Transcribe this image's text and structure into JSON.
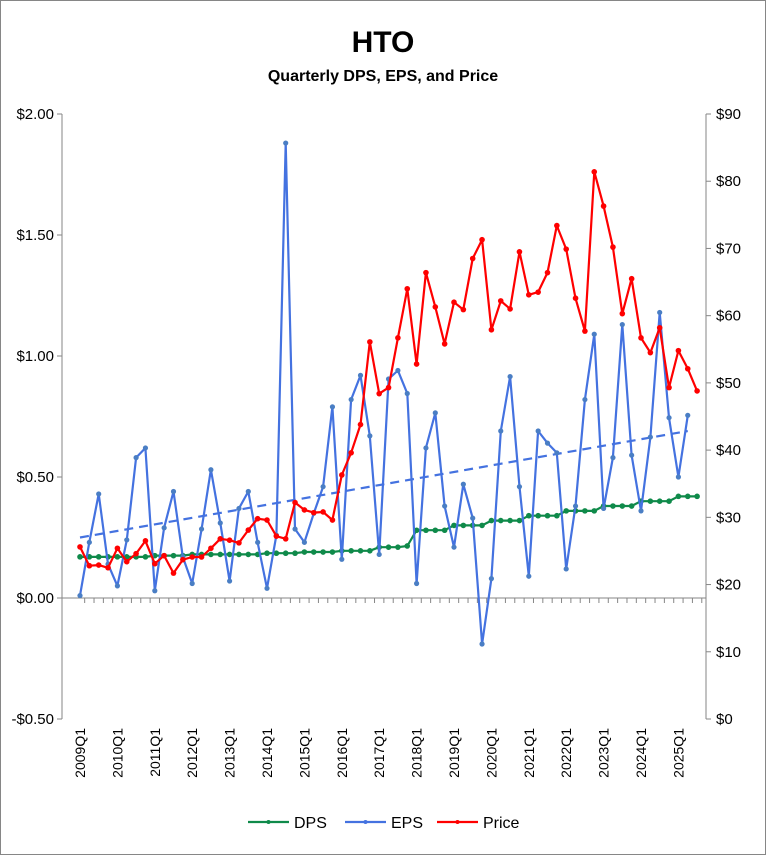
{
  "chart_data": {
    "type": "line",
    "title": "HTO",
    "subtitle": "Quarterly DPS, EPS, and Price",
    "left_axis": {
      "ylim": [
        -0.5,
        2.0
      ],
      "ticks": [
        2.0,
        1.5,
        1.0,
        0.5,
        0.0,
        -0.5
      ],
      "tick_labels": [
        "$2.00",
        "$1.50",
        "$1.00",
        "$0.50",
        "$0.00",
        "-$0.50"
      ]
    },
    "right_axis": {
      "ylim": [
        0,
        90
      ],
      "ticks": [
        90,
        80,
        70,
        60,
        50,
        40,
        30,
        20,
        10,
        0
      ],
      "tick_labels": [
        "$90",
        "$80",
        "$70",
        "$60",
        "$50",
        "$40",
        "$30",
        "$20",
        "$10",
        "$0"
      ]
    },
    "x_tick_labels": [
      "2009Q1",
      "2010Q1",
      "2011Q1",
      "2012Q1",
      "2013Q1",
      "2014Q1",
      "2015Q1",
      "2016Q1",
      "2017Q1",
      "2018Q1",
      "2019Q1",
      "2020Q1",
      "2021Q1",
      "2022Q1",
      "2023Q1",
      "2024Q1",
      "2025Q1"
    ],
    "num_quarters": 67,
    "grid": false,
    "legend_position": "bottom",
    "series": [
      {
        "name": "DPS",
        "axis": "left",
        "color": "#0F8A4A",
        "values": [
          0.17,
          0.17,
          0.17,
          0.17,
          0.17,
          0.17,
          0.17,
          0.17,
          0.175,
          0.175,
          0.175,
          0.175,
          0.18,
          0.18,
          0.18,
          0.18,
          0.18,
          0.18,
          0.18,
          0.18,
          0.185,
          0.185,
          0.185,
          0.185,
          0.19,
          0.19,
          0.19,
          0.19,
          0.195,
          0.195,
          0.195,
          0.195,
          0.21,
          0.21,
          0.21,
          0.215,
          0.28,
          0.28,
          0.28,
          0.28,
          0.3,
          0.3,
          0.3,
          0.3,
          0.32,
          0.32,
          0.32,
          0.32,
          0.34,
          0.34,
          0.34,
          0.34,
          0.36,
          0.36,
          0.36,
          0.36,
          0.38,
          0.38,
          0.38,
          0.38,
          0.4,
          0.4,
          0.4,
          0.4,
          0.42,
          0.42,
          0.42
        ]
      },
      {
        "name": "EPS",
        "axis": "left",
        "color": "#4472E0",
        "values": [
          0.01,
          0.23,
          0.43,
          0.14,
          0.05,
          0.24,
          0.58,
          0.62,
          0.03,
          0.29,
          0.44,
          0.17,
          0.06,
          0.285,
          0.53,
          0.31,
          0.07,
          0.37,
          0.44,
          0.23,
          0.04,
          0.26,
          1.88,
          0.285,
          0.23,
          0.35,
          0.46,
          0.79,
          0.16,
          0.82,
          0.92,
          0.67,
          0.18,
          0.905,
          0.94,
          0.845,
          0.06,
          0.62,
          0.765,
          0.38,
          0.21,
          0.47,
          0.33,
          -0.19,
          0.08,
          0.69,
          0.915,
          0.46,
          0.09,
          0.69,
          0.64,
          0.6,
          0.12,
          0.38,
          0.82,
          1.09,
          0.37,
          0.58,
          1.13,
          0.59,
          0.36,
          0.665,
          1.18,
          0.745,
          0.5,
          0.755
        ]
      },
      {
        "name": "Price",
        "axis": "right",
        "color": "#FF0000",
        "values": [
          25.6,
          22.8,
          22.9,
          22.5,
          25.4,
          23.4,
          24.6,
          26.5,
          23.1,
          24.3,
          21.7,
          23.7,
          24.1,
          24.1,
          25.4,
          26.8,
          26.6,
          26.2,
          28.1,
          29.8,
          29.6,
          27.2,
          26.8,
          32.2,
          31.1,
          30.7,
          30.8,
          29.6,
          36.3,
          39.6,
          43.8,
          56.1,
          48.4,
          49.3,
          56.7,
          64.0,
          52.8,
          66.4,
          61.3,
          55.8,
          62.0,
          60.9,
          68.5,
          71.3,
          57.9,
          62.2,
          61.0,
          69.5,
          63.1,
          63.5,
          66.4,
          73.4,
          69.9,
          62.6,
          57.7,
          81.4,
          76.3,
          70.2,
          60.3,
          65.5,
          56.7,
          54.5,
          58.2,
          49.3,
          54.8,
          52.1,
          48.8
        ]
      }
    ],
    "trendline": {
      "series": "EPS",
      "style": "dashed linear",
      "color": "#4472E0",
      "start_value": 0.25,
      "end_value": 0.69
    }
  },
  "legend": {
    "items": [
      {
        "label": "DPS",
        "color": "#0F8A4A"
      },
      {
        "label": "EPS",
        "color": "#4472E0"
      },
      {
        "label": "Price",
        "color": "#FF0000"
      }
    ]
  }
}
